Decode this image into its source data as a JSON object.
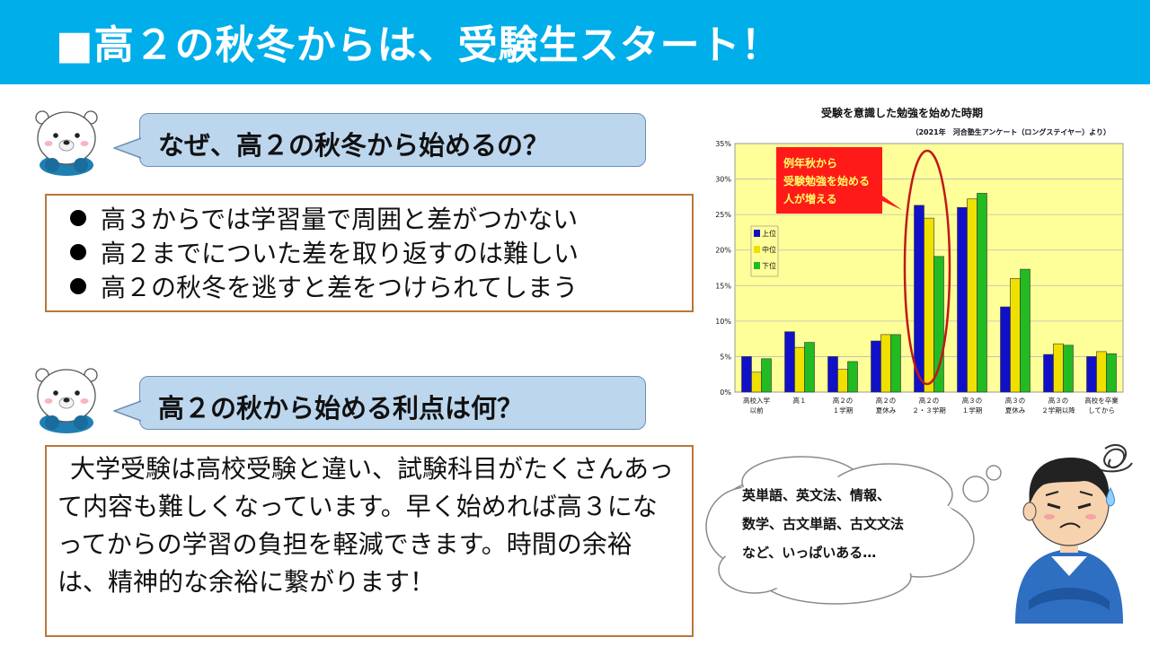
{
  "header": {
    "title": "■高２の秋冬からは、受験生スタート！"
  },
  "section1": {
    "question": "なぜ、高２の秋冬から始めるの？",
    "bullets": [
      "高３からでは学習量で周囲と差がつかない",
      "高２までについた差を取り返すのは難しい",
      "高２の秋冬を逃すと差をつけられてしまう"
    ]
  },
  "section2": {
    "question": "高２の秋から始める利点は何？",
    "paragraph": "大学受験は高校受験と違い、試験科目がたくさんあって内容も難しくなっています。早く始めれば高３になってからの学習の負担を軽減できます。時間の余裕は、精神的な余裕に繋がります！"
  },
  "thought": {
    "lines": [
      "英単語、英文法、情報、",
      "数学、古文単語、古文文法",
      "など、いっぱいある…"
    ]
  },
  "colors": {
    "banner": "#00aeea",
    "bubble": "#bcd6ee",
    "box_border": "#b8773a",
    "chart_bg": "#ffff99"
  },
  "chart_data": {
    "type": "bar",
    "title": "受験を意識した勉強を始めた時期",
    "subtitle": "（2021年　河合塾生アンケート（ロングステイヤー）より）",
    "categories": [
      [
        "高校入学",
        "以前"
      ],
      [
        "高１"
      ],
      [
        "高２の",
        "１学期"
      ],
      [
        "高２の",
        "夏休み"
      ],
      [
        "高２の",
        "２・３学期"
      ],
      [
        "高３の",
        "１学期"
      ],
      [
        "高３の",
        "夏休み"
      ],
      [
        "高３の",
        "２学期以降"
      ],
      [
        "高校を卒業",
        "してから"
      ]
    ],
    "yticks": [
      "0%",
      "5%",
      "10%",
      "15%",
      "20%",
      "25%",
      "30%",
      "35%"
    ],
    "ylim": [
      0,
      35
    ],
    "series": [
      {
        "name": "上位",
        "color": "#1010c8",
        "values": [
          5.0,
          8.5,
          5.0,
          7.2,
          26.3,
          26.0,
          12.0,
          5.3,
          5.0
        ]
      },
      {
        "name": "中位",
        "color": "#f0e000",
        "values": [
          2.8,
          6.3,
          3.2,
          8.1,
          24.5,
          27.2,
          16.0,
          6.8,
          5.7
        ]
      },
      {
        "name": "下位",
        "color": "#22bb22",
        "values": [
          4.7,
          7.0,
          4.3,
          8.1,
          19.1,
          28.0,
          17.3,
          6.6,
          5.4
        ]
      }
    ],
    "legend_position": "left",
    "grid": true,
    "callout": [
      "例年秋から",
      "受験勉強を始める",
      "人が増える"
    ]
  }
}
